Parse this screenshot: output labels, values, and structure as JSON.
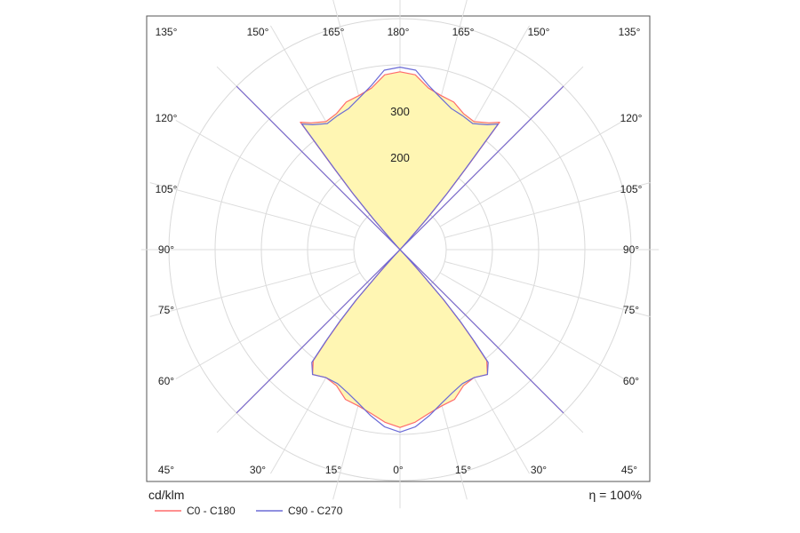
{
  "chart_data": {
    "type": "polar",
    "unit_label": "cd/klm",
    "efficiency_label": "η = 100%",
    "radial_ticks": [
      {
        "value": 100,
        "label": ""
      },
      {
        "value": 200,
        "label": "200"
      },
      {
        "value": 300,
        "label": "300"
      },
      {
        "value": 400,
        "label": ""
      },
      {
        "value": 500,
        "label": ""
      }
    ],
    "radial_max": 500,
    "angle_ticks_top_left": [
      "135°",
      "150°",
      "165°"
    ],
    "angle_tick_top_center": "180°",
    "angle_ticks_top_right": [
      "165°",
      "150°",
      "135°"
    ],
    "angle_ticks_bottom_left": [
      "45°",
      "30°",
      "15°"
    ],
    "angle_tick_bottom_center": "0°",
    "angle_ticks_bottom_right": [
      "15°",
      "30°",
      "45°"
    ],
    "angle_ticks_side": [
      "120°",
      "105°",
      "90°",
      "75°",
      "60°"
    ],
    "series": [
      {
        "name": "C0 - C180",
        "color": "#ff6b6b",
        "fill": "#fff6b3",
        "angles": [
          0,
          5,
          10,
          15,
          20,
          25,
          30,
          35,
          38,
          39,
          40,
          41,
          42,
          43,
          45
        ],
        "values": [
          385,
          375,
          360,
          350,
          345,
          325,
          320,
          330,
          305,
          250,
          200,
          140,
          60,
          20,
          0
        ],
        "upper_angles": [
          180,
          175,
          170,
          165,
          160,
          155,
          150,
          145,
          142,
          141,
          140,
          139,
          138,
          137,
          135
        ],
        "upper_values": [
          385,
          380,
          355,
          345,
          340,
          325,
          320,
          335,
          350,
          230,
          160,
          90,
          30,
          10,
          0
        ]
      },
      {
        "name": "C90 - C270",
        "color": "#6b6bd6",
        "angles": [
          0,
          5,
          10,
          15,
          20,
          25,
          30,
          35,
          38,
          39,
          40,
          41,
          42,
          43,
          45
        ],
        "values": [
          395,
          385,
          365,
          345,
          330,
          320,
          320,
          330,
          310,
          255,
          205,
          145,
          65,
          22,
          0
        ],
        "upper_angles": [
          180,
          175,
          170,
          165,
          160,
          155,
          150,
          145,
          142,
          141,
          140,
          139,
          138,
          137,
          135
        ],
        "upper_values": [
          395,
          390,
          360,
          340,
          325,
          320,
          315,
          330,
          345,
          225,
          155,
          85,
          28,
          8,
          0
        ]
      }
    ]
  }
}
